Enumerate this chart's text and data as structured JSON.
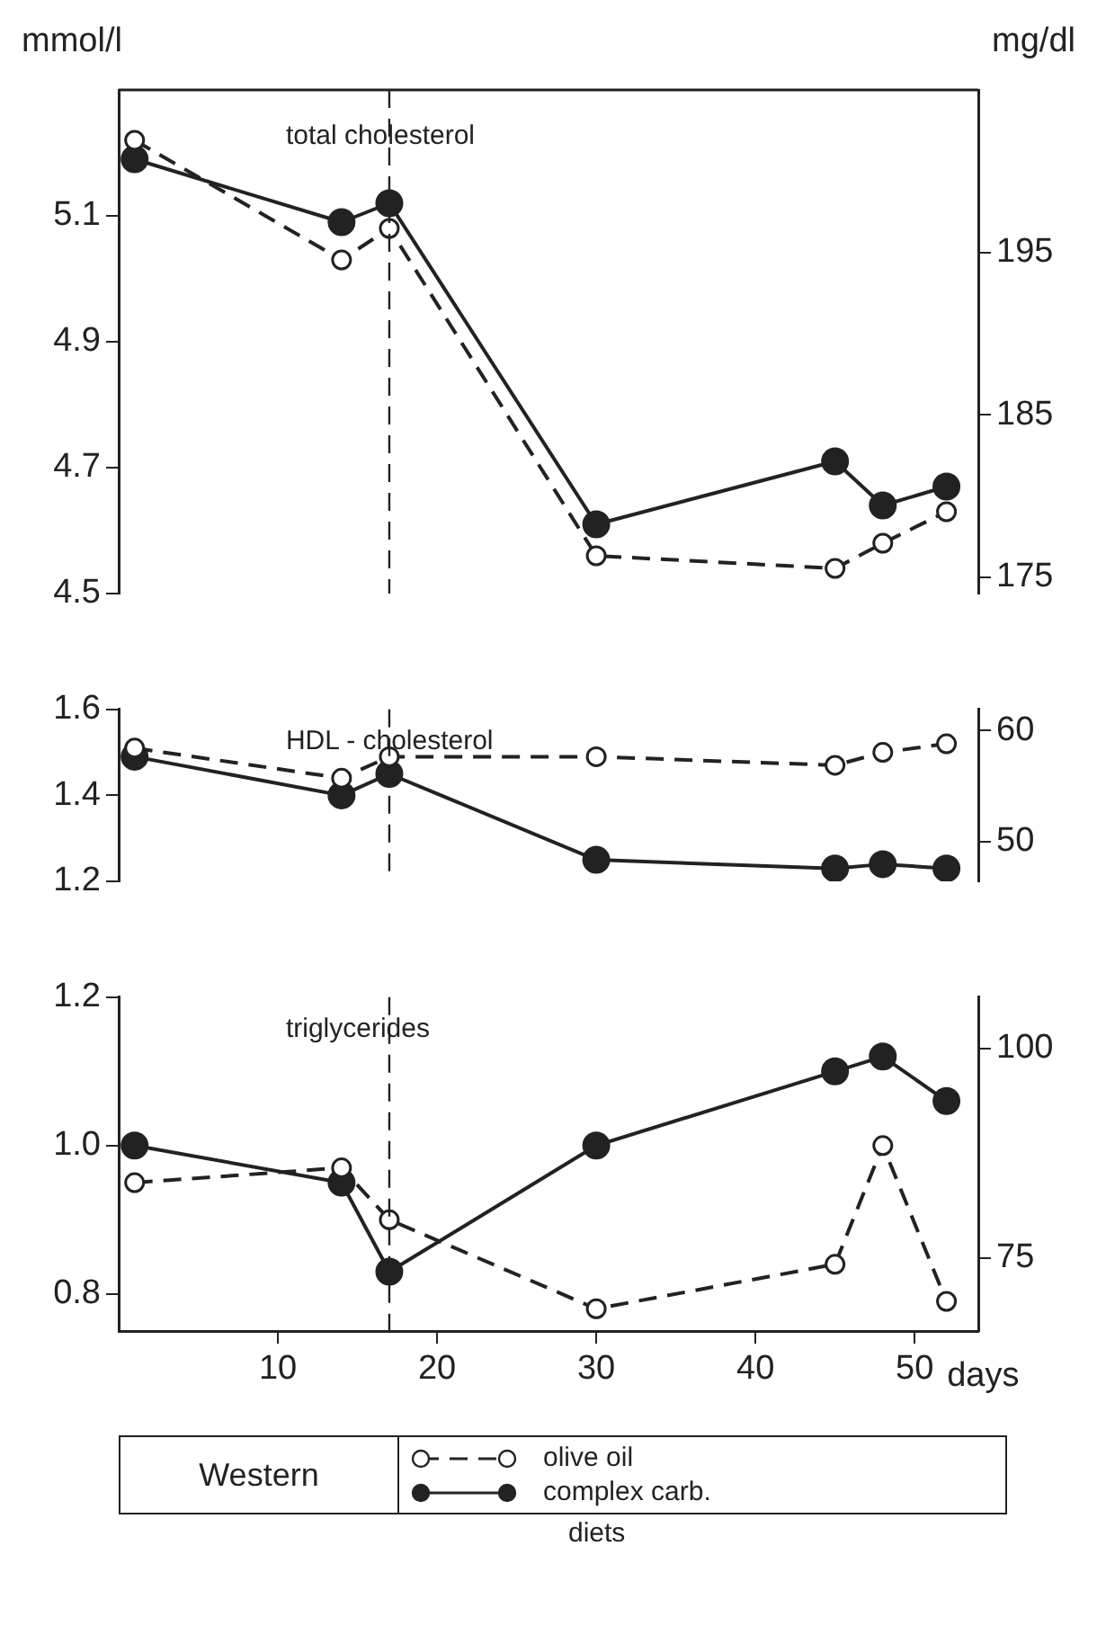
{
  "chart_data": [
    {
      "type": "line",
      "title": "total cholesterol",
      "ylabel": "mmol/l",
      "y2label": "mg/dl",
      "x": [
        1,
        14,
        17,
        30,
        45,
        48,
        52
      ],
      "xlim": [
        0,
        54
      ],
      "ylim": [
        4.5,
        5.3
      ],
      "yticks": [
        4.5,
        4.7,
        4.9,
        5.1
      ],
      "y2lim": [
        174,
        205
      ],
      "y2ticks": [
        175,
        185,
        195
      ],
      "tick_labels": "y",
      "marker": "circle",
      "legend": false,
      "ref_lines": [
        {
          "axis": "x",
          "value": 17,
          "line_style": "dashed"
        }
      ],
      "series": [
        {
          "color": "#222222",
          "line_style": "dashed",
          "values": [
            5.22,
            5.03,
            5.08,
            4.56,
            4.54,
            4.58,
            4.63
          ]
        },
        {
          "color": "#222222",
          "line_style": "solid",
          "values": [
            5.19,
            5.09,
            5.12,
            4.61,
            4.71,
            4.64,
            4.67
          ]
        }
      ]
    },
    {
      "type": "line",
      "title": "HDL - cholesterol",
      "x": [
        1,
        14,
        17,
        30,
        45,
        48,
        52
      ],
      "xlim": [
        0,
        54
      ],
      "ylim": [
        1.2,
        1.6
      ],
      "yticks": [
        1.2,
        1.4,
        1.6
      ],
      "y2lim": [
        46.4,
        61.9
      ],
      "y2ticks": [
        50,
        60
      ],
      "tick_labels": "y",
      "marker": "circle",
      "legend": false,
      "ref_lines": [
        {
          "axis": "x",
          "value": 17,
          "line_style": "dashed"
        }
      ],
      "series": [
        {
          "color": "#222222",
          "line_style": "dashed",
          "values": [
            1.51,
            1.44,
            1.49,
            1.49,
            1.47,
            1.5,
            1.52
          ]
        },
        {
          "color": "#222222",
          "line_style": "solid",
          "values": [
            1.49,
            1.4,
            1.45,
            1.25,
            1.23,
            1.24,
            1.23
          ]
        }
      ]
    },
    {
      "type": "line",
      "title": "triglycerides",
      "xlabel": "days",
      "x": [
        1,
        14,
        17,
        30,
        45,
        48,
        52
      ],
      "xlim": [
        0,
        54
      ],
      "xticks": [
        10,
        20,
        30,
        40,
        50
      ],
      "ylim": [
        0.75,
        1.2
      ],
      "yticks": [
        0.8,
        {
          "value": 1,
          "label": "1.0"
        },
        1.2
      ],
      "y2lim": [
        66.3,
        106.1
      ],
      "y2ticks": [
        75,
        100
      ],
      "marker": "circle",
      "legend": "bottom",
      "legend_title": "diets",
      "annotations": [
        "Western"
      ],
      "ref_lines": [
        {
          "axis": "x",
          "value": 17,
          "line_style": "dashed"
        }
      ],
      "series": [
        {
          "name": "olive oil",
          "color": "#222222",
          "line_style": "dashed",
          "values": [
            0.95,
            0.97,
            0.9,
            0.78,
            0.84,
            1.0,
            0.79
          ]
        },
        {
          "name": "complex carb.",
          "color": "#222222",
          "line_style": "solid",
          "values": [
            1.0,
            0.95,
            0.83,
            1.0,
            1.1,
            1.12,
            1.06
          ]
        }
      ]
    }
  ]
}
